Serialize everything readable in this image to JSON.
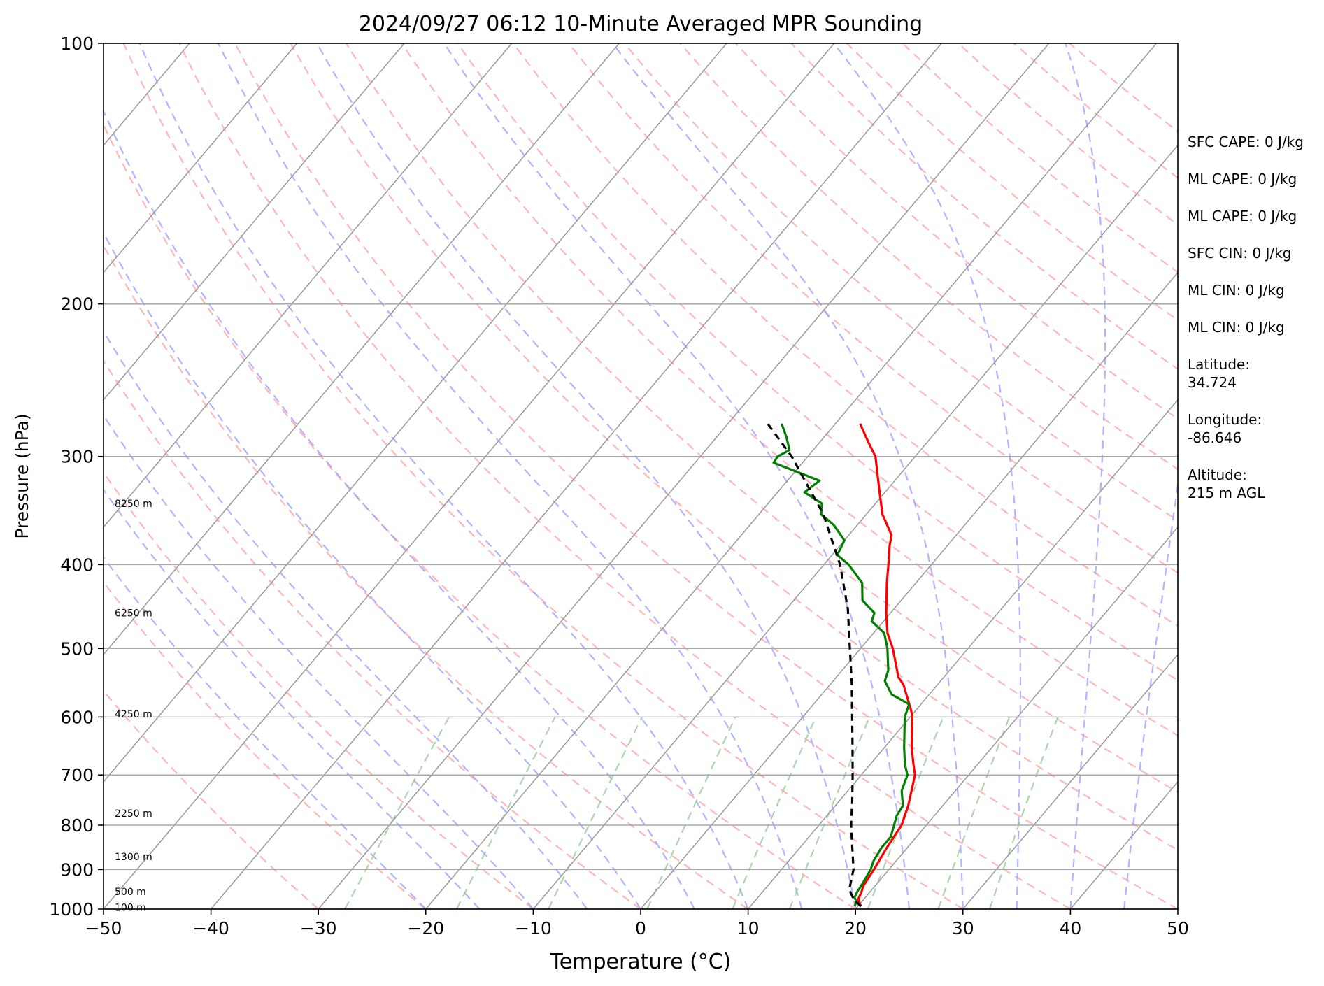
{
  "chart_data": {
    "type": "line",
    "subtype": "skew-t log-p",
    "title": "2024/09/27 06:12 10-Minute Averaged MPR Sounding",
    "xlabel": "Temperature (°C)",
    "ylabel": "Pressure (hPa)",
    "xlim": [
      -50,
      50
    ],
    "ylim": [
      1000,
      100
    ],
    "y_scale": "log",
    "x_ticks": [
      "−50",
      "−40",
      "−30",
      "−20",
      "−10",
      "0",
      "10",
      "20",
      "30",
      "40",
      "50"
    ],
    "x_tick_values": [
      -50,
      -40,
      -30,
      -20,
      -10,
      0,
      10,
      20,
      30,
      40,
      50
    ],
    "y_ticks": [
      "100",
      "200",
      "300",
      "400",
      "500",
      "600",
      "700",
      "800",
      "900",
      "1000"
    ],
    "y_tick_values": [
      100,
      200,
      300,
      400,
      500,
      600,
      700,
      800,
      900,
      1000
    ],
    "grid": true,
    "skew_deg_per_log_decade": 68,
    "height_labels": [
      {
        "text": "8250 m",
        "pressure": 340
      },
      {
        "text": "6250 m",
        "pressure": 455
      },
      {
        "text": "4250 m",
        "pressure": 595
      },
      {
        "text": "2250 m",
        "pressure": 775
      },
      {
        "text": "1300 m",
        "pressure": 870
      },
      {
        "text": "500 m",
        "pressure": 955
      },
      {
        "text": "100 m",
        "pressure": 995
      }
    ],
    "series": [
      {
        "role": "temperature",
        "color": "#ff0000",
        "points": [
          [
            993,
            20.3
          ],
          [
            975,
            19.5
          ],
          [
            955,
            19.2
          ],
          [
            940,
            18.9
          ],
          [
            900,
            18.6
          ],
          [
            850,
            18.1
          ],
          [
            800,
            17.7
          ],
          [
            760,
            16.8
          ],
          [
            700,
            15.0
          ],
          [
            680,
            14.0
          ],
          [
            650,
            12.5
          ],
          [
            600,
            10.2
          ],
          [
            590,
            9.6
          ],
          [
            550,
            6.8
          ],
          [
            540,
            5.8
          ],
          [
            500,
            3.0
          ],
          [
            480,
            1.3
          ],
          [
            455,
            -0.4
          ],
          [
            420,
            -2.7
          ],
          [
            400,
            -4.0
          ],
          [
            380,
            -5.4
          ],
          [
            370,
            -6.0
          ],
          [
            350,
            -8.5
          ],
          [
            330,
            -10.5
          ],
          [
            300,
            -13.7
          ],
          [
            290,
            -15.3
          ],
          [
            275,
            -17.7
          ]
        ]
      },
      {
        "role": "dewpoint",
        "color": "#008000",
        "points": [
          [
            993,
            19.7
          ],
          [
            980,
            19.5
          ],
          [
            970,
            19.0
          ],
          [
            955,
            18.8
          ],
          [
            940,
            18.7
          ],
          [
            900,
            18.3
          ],
          [
            880,
            17.9
          ],
          [
            850,
            17.6
          ],
          [
            825,
            17.6
          ],
          [
            800,
            17.0
          ],
          [
            780,
            16.5
          ],
          [
            760,
            16.3
          ],
          [
            730,
            15.0
          ],
          [
            700,
            14.3
          ],
          [
            680,
            13.2
          ],
          [
            650,
            11.8
          ],
          [
            600,
            9.5
          ],
          [
            580,
            8.9
          ],
          [
            565,
            6.5
          ],
          [
            545,
            4.8
          ],
          [
            530,
            4.3
          ],
          [
            500,
            2.5
          ],
          [
            480,
            1.0
          ],
          [
            465,
            -1.1
          ],
          [
            455,
            -1.5
          ],
          [
            440,
            -3.6
          ],
          [
            420,
            -5.0
          ],
          [
            400,
            -7.7
          ],
          [
            390,
            -9.5
          ],
          [
            375,
            -10.0
          ],
          [
            360,
            -12.2
          ],
          [
            350,
            -14.2
          ],
          [
            340,
            -15.0
          ],
          [
            330,
            -17.5
          ],
          [
            320,
            -17.0
          ],
          [
            305,
            -22.7
          ],
          [
            300,
            -22.8
          ],
          [
            295,
            -22.2
          ],
          [
            285,
            -23.5
          ],
          [
            275,
            -25.0
          ]
        ]
      },
      {
        "role": "parcel",
        "color": "#000000",
        "dashed": true,
        "points": [
          [
            993,
            20.3
          ],
          [
            975,
            19.1
          ],
          [
            950,
            17.9
          ],
          [
            900,
            16.7
          ],
          [
            850,
            14.9
          ],
          [
            800,
            13.0
          ],
          [
            750,
            11.2
          ],
          [
            700,
            9.2
          ],
          [
            650,
            7.0
          ],
          [
            600,
            4.6
          ],
          [
            550,
            2.0
          ],
          [
            500,
            -1.0
          ],
          [
            450,
            -4.3
          ],
          [
            400,
            -8.5
          ],
          [
            350,
            -14.0
          ],
          [
            300,
            -21.5
          ],
          [
            275,
            -26.3
          ]
        ]
      }
    ],
    "background_lines": {
      "dry_adiabat_color": "#ff9999",
      "moist_adiabat_color": "#9999ff",
      "mixing_ratio_color": "#99cc99",
      "isotherm_color": "#999999"
    }
  },
  "info_panel": [
    "SFC CAPE: 0 J/kg",
    "ML CAPE: 0 J/kg",
    "ML CAPE: 0 J/kg",
    "SFC CIN: 0 J/kg",
    "ML CIN: 0 J/kg",
    "ML CIN: 0 J/kg",
    "Latitude:\n34.724",
    "Longitude:\n-86.646",
    "Altitude:\n215 m AGL"
  ]
}
